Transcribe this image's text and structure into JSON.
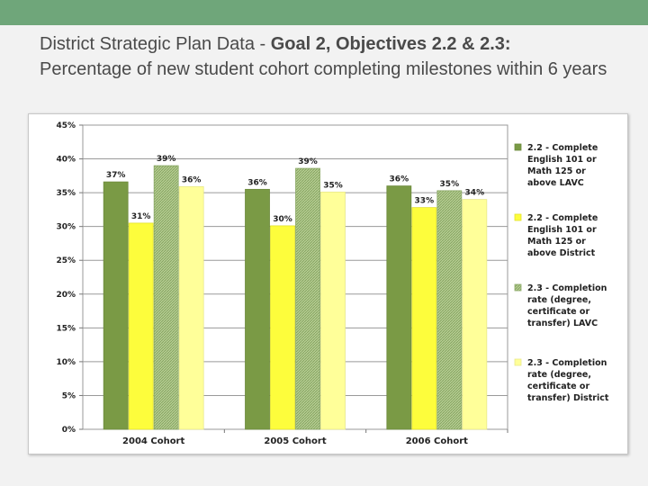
{
  "header": {
    "title_prefix": "District Strategic Plan Data - ",
    "title_bold": "Goal 2, Objectives 2.2 & 2.3:",
    "title_rest": "Percentage of new student cohort completing milestones within 6 years"
  },
  "colors": {
    "band": "#6fa67a",
    "series": [
      "#7a9a45",
      "#fdfd3c",
      "#a3bf7c",
      "#ffff99"
    ]
  },
  "chart_data": {
    "type": "bar",
    "title": "",
    "xlabel": "",
    "ylabel": "",
    "ylim": [
      0,
      45
    ],
    "y_ticks": [
      0,
      5,
      10,
      15,
      20,
      25,
      30,
      35,
      40,
      45
    ],
    "y_tick_labels": [
      "0%",
      "5%",
      "10%",
      "15%",
      "20%",
      "25%",
      "30%",
      "35%",
      "40%",
      "45%"
    ],
    "grid": true,
    "legend_position": "right",
    "categories": [
      "2004 Cohort",
      "2005 Cohort",
      "2006 Cohort"
    ],
    "series": [
      {
        "name": "2.2 - Complete English 101 or Math 125 or above LAVC",
        "legend_lines": [
          "2.2 - Complete",
          "English 101 or",
          "Math 125 or",
          "above LAVC"
        ],
        "values": [
          36.6,
          35.5,
          36.0
        ],
        "labels": [
          "37%",
          "36%",
          "36%"
        ]
      },
      {
        "name": "2.2 - Complete English 101 or Math 125 or above District",
        "legend_lines": [
          "2.2 - Complete",
          "English 101 or",
          "Math 125 or",
          "above District"
        ],
        "values": [
          30.5,
          30.1,
          32.8
        ],
        "labels": [
          "31%",
          "30%",
          "33%"
        ]
      },
      {
        "name": "2.3 - Completion rate (degree, certificate or transfer) LAVC",
        "legend_lines": [
          "2.3 - Completion",
          "rate (degree,",
          "certificate or",
          "transfer) LAVC"
        ],
        "values": [
          39.0,
          38.6,
          35.3
        ],
        "labels": [
          "39%",
          "39%",
          "35%"
        ]
      },
      {
        "name": "2.3 - Completion rate (degree, certificate or transfer) District",
        "legend_lines": [
          "2.3 - Completion",
          "rate (degree,",
          "certificate or",
          "transfer) District"
        ],
        "values": [
          35.9,
          35.1,
          34.0
        ],
        "labels": [
          "36%",
          "35%",
          "34%"
        ]
      }
    ]
  }
}
